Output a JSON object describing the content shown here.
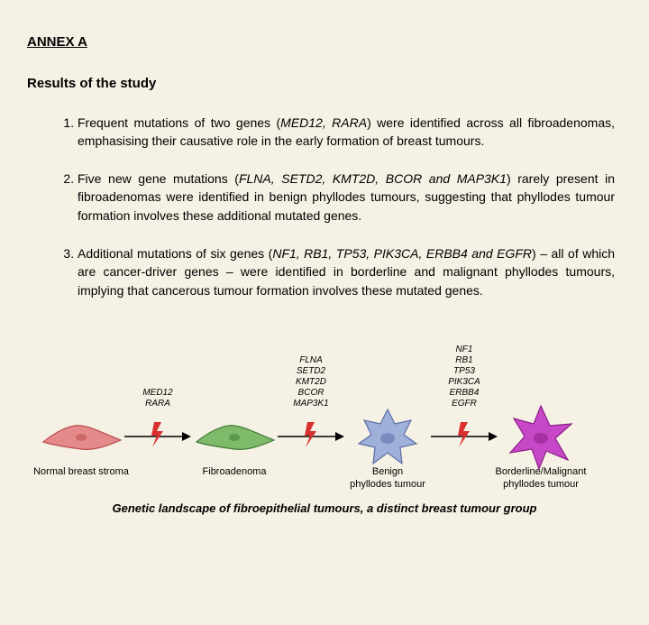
{
  "annex": "ANNEX A",
  "subtitle": "Results of the study",
  "items": [
    {
      "pre": "Frequent mutations of two genes (",
      "genes": "MED12, RARA",
      "post": ") were identified across all fibroadenomas, emphasising their causative role in the early formation of breast tumours."
    },
    {
      "pre": "Five new gene mutations (",
      "genes": "FLNA, SETD2, KMT2D, BCOR and MAP3K1",
      "post": ") rarely present in fibroadenomas were identified in benign phyllodes tumours, suggesting that phyllodes tumour formation involves these additional mutated genes."
    },
    {
      "pre": "Additional mutations of six genes (",
      "genes": "NF1, RB1, TP53, PIK3CA, ERBB4 and EGFR",
      "post": ") – all of which are cancer-driver genes – were identified in borderline and malignant phyllodes tumours, implying that cancerous tumour formation involves these mutated genes."
    }
  ],
  "diagram": {
    "stages": [
      {
        "label": "Normal breast stroma",
        "genes": [],
        "cell_color": "#e58a8a",
        "cell_stroke": "#b84c4c",
        "shape": "spindle"
      },
      {
        "label": "Fibroadenoma",
        "genes": [
          "MED12",
          "RARA"
        ],
        "cell_color": "#7fb96a",
        "cell_stroke": "#3f7a32",
        "shape": "spindle"
      },
      {
        "label": "Benign\nphyllodes tumour",
        "genes": [
          "FLNA",
          "SETD2",
          "KMT2D",
          "BCOR",
          "MAP3K1"
        ],
        "cell_color": "#9fb0d9",
        "cell_stroke": "#5a6ea6",
        "shape": "starblob"
      },
      {
        "label": "Borderline/Malignant\nphyllodes tumour",
        "genes": [
          "NF1",
          "RB1",
          "TP53",
          "PIK3CA",
          "ERBB4",
          "EGFR"
        ],
        "cell_color": "#c648c6",
        "cell_stroke": "#8a1f8a",
        "shape": "star"
      }
    ],
    "arrow_color": "#000000",
    "bolt_color": "#d92f2f",
    "gene_font_size": 10,
    "label_font_size": 11,
    "background": "#f5f1e4"
  },
  "caption": "Genetic landscape of fibroepithelial tumours, a distinct breast tumour group"
}
